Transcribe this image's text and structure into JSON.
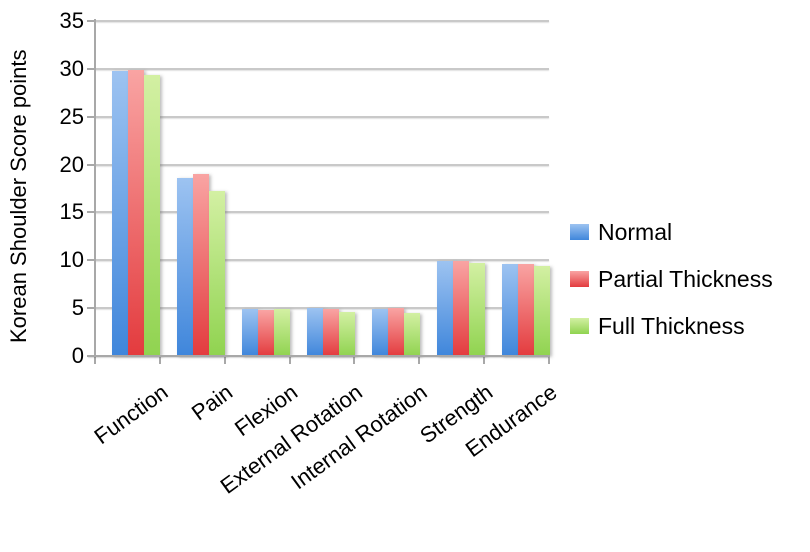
{
  "chart_data": {
    "type": "bar",
    "title": "",
    "xlabel": "",
    "ylabel": "Korean Shoulder Score points",
    "ylim": [
      0,
      35
    ],
    "yticks": [
      0,
      5,
      10,
      15,
      20,
      25,
      30,
      35
    ],
    "grid": true,
    "legend_position": "right",
    "categories": [
      "Function",
      "Pain",
      "Flexion",
      "External Rotation",
      "Internal Rotation",
      "Strength",
      "Endurance"
    ],
    "series": [
      {
        "name": "Normal",
        "color_top": "#9DC3F1",
        "color_bottom": "#3F86DB",
        "values": [
          29.8,
          18.6,
          4.9,
          5.0,
          4.9,
          9.9,
          9.6
        ]
      },
      {
        "name": "Partial Thickness",
        "color_top": "#F9A4A3",
        "color_bottom": "#E33B3E",
        "values": [
          29.9,
          19.0,
          4.8,
          4.9,
          5.0,
          9.9,
          9.6
        ]
      },
      {
        "name": "Full Thickness",
        "color_top": "#D3F0A3",
        "color_bottom": "#90D350",
        "values": [
          29.4,
          17.2,
          4.9,
          4.6,
          4.5,
          9.7,
          9.4
        ]
      }
    ]
  }
}
